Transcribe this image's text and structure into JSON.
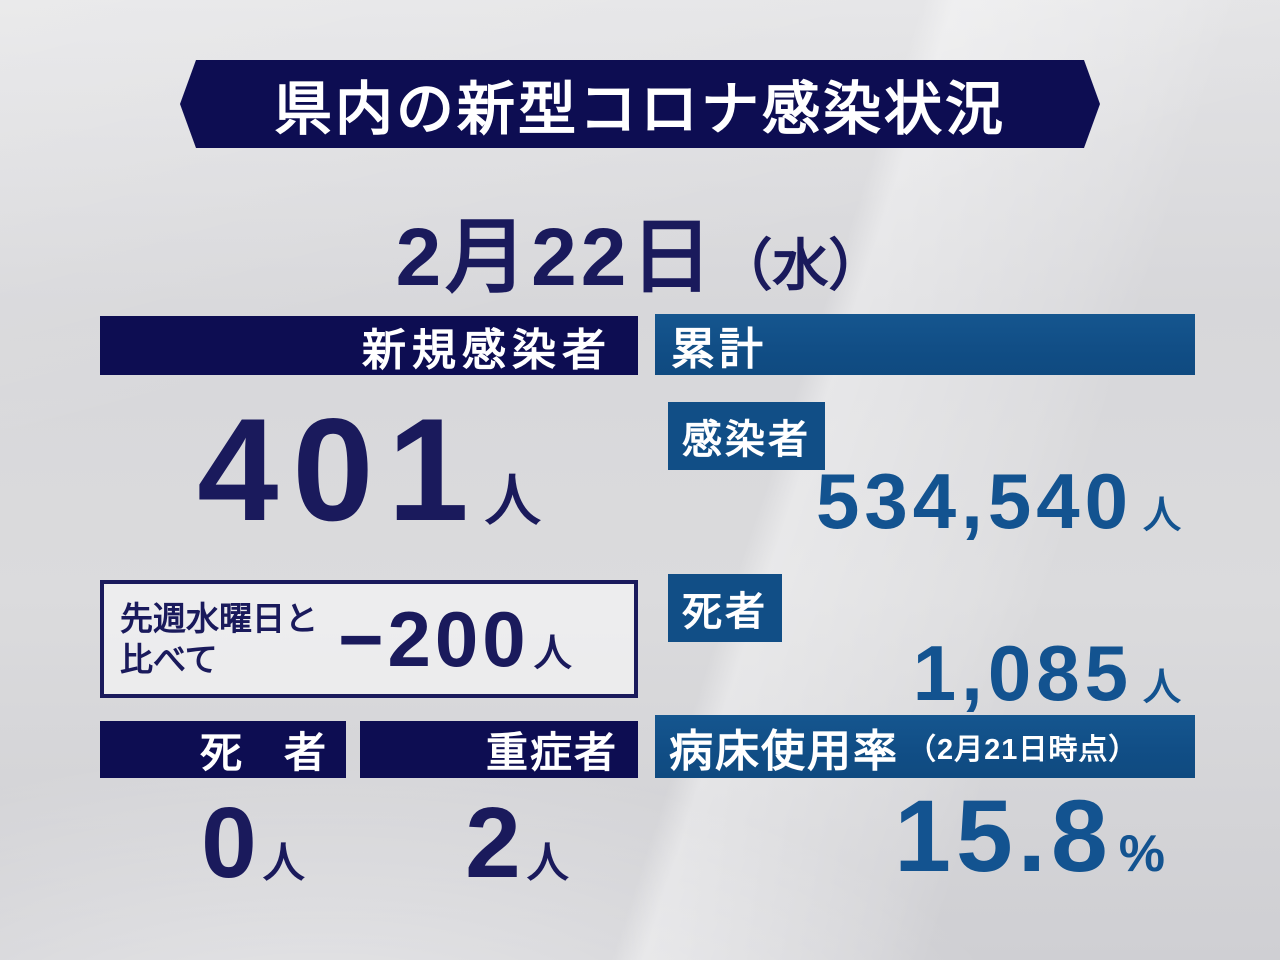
{
  "page": {
    "title": "県内の新型コロナ感染状況",
    "date": {
      "main": "2月22日",
      "weekday": "（水）"
    }
  },
  "new_section": {
    "header": "新規感染者",
    "count": {
      "value": "401",
      "unit": "人"
    },
    "week_compare": {
      "label_line1": "先週水曜日と",
      "label_line2": "比べて",
      "value": "−200",
      "unit": "人"
    },
    "deaths": {
      "header": "死　者",
      "value": "0",
      "unit": "人"
    },
    "severe": {
      "header": "重症者",
      "value": "2",
      "unit": "人"
    }
  },
  "cumulative_section": {
    "header": "累計",
    "infected": {
      "label": "感染者",
      "value": "534,540",
      "unit": "人"
    },
    "deaths": {
      "label": "死者",
      "value": "1,085",
      "unit": "人"
    },
    "bed_usage": {
      "label": "病床使用率",
      "note": "（2月21日時点）",
      "value": "15.8",
      "unit": "%"
    }
  },
  "colors": {
    "navy": "#0d0d52",
    "navy_text": "#1a1a5c",
    "blue": "#114e86",
    "blue_text": "#135390",
    "background": "#d8d8da",
    "white": "#ffffff"
  },
  "chart_data": {
    "type": "table",
    "title": "県内の新型コロナ感染状況",
    "date": "2月22日（水）",
    "rows": [
      {
        "label": "新規感染者",
        "value": 401,
        "unit": "人"
      },
      {
        "label": "先週水曜日と比べて",
        "value": -200,
        "unit": "人"
      },
      {
        "label": "死者（新規）",
        "value": 0,
        "unit": "人"
      },
      {
        "label": "重症者",
        "value": 2,
        "unit": "人"
      },
      {
        "label": "累計 感染者",
        "value": 534540,
        "unit": "人"
      },
      {
        "label": "累計 死者",
        "value": 1085,
        "unit": "人"
      },
      {
        "label": "病床使用率（2月21日時点）",
        "value": 15.8,
        "unit": "%"
      }
    ]
  }
}
